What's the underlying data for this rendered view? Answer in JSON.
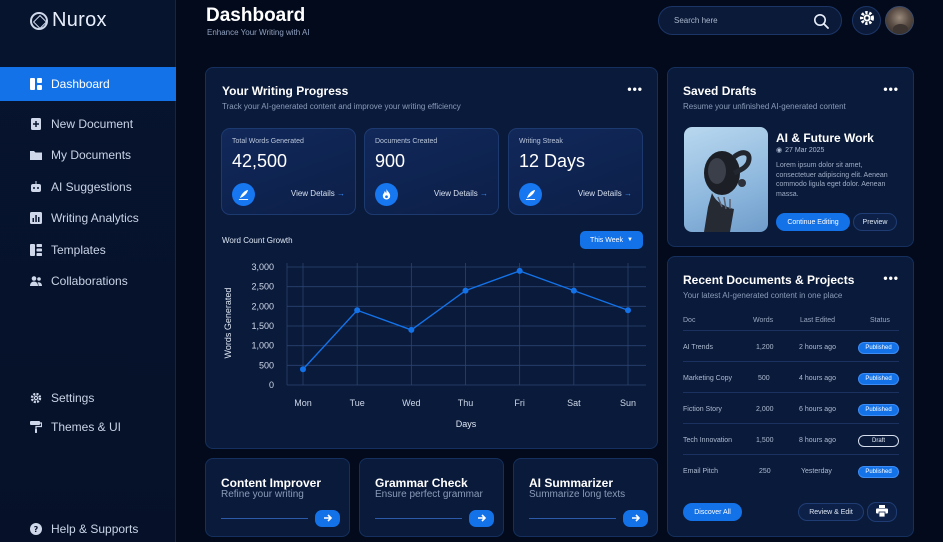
{
  "brand": {
    "name": "Nurox"
  },
  "sidebar": {
    "items": [
      {
        "label": "Dashboard",
        "icon": "dashboard-icon",
        "active": true
      },
      {
        "label": "New Document",
        "icon": "new-document-icon"
      },
      {
        "label": "My Documents",
        "icon": "folder-icon"
      },
      {
        "label": "AI Suggestions",
        "icon": "robot-icon"
      },
      {
        "label": "Writing Analytics",
        "icon": "chart-icon"
      },
      {
        "label": "Templates",
        "icon": "template-icon"
      },
      {
        "label": "Collaborations",
        "icon": "users-icon"
      }
    ],
    "bottom": [
      {
        "label": "Settings",
        "icon": "gear-icon"
      },
      {
        "label": "Themes & UI",
        "icon": "paint-roller-icon"
      },
      {
        "label": "Help & Supports",
        "icon": "help-icon"
      }
    ]
  },
  "header": {
    "title": "Dashboard",
    "subtitle": "Enhance Your Writing with AI",
    "search_placeholder": "Search here"
  },
  "progress": {
    "title": "Your Writing Progress",
    "subtitle": "Track your AI-generated content and improve your writing efficiency",
    "stats": [
      {
        "label": "Total Words Generated",
        "value": "42,500",
        "link": "View Details",
        "icon": "quill-icon"
      },
      {
        "label": "Documents Created",
        "value": "900",
        "link": "View Details",
        "icon": "flame-icon"
      },
      {
        "label": "Writing Streak",
        "value": "12 Days",
        "link": "View Details",
        "icon": "quill-icon"
      }
    ],
    "chart_title": "Word Count Growth",
    "range_button": "This Week"
  },
  "chart_data": {
    "type": "line",
    "title": "Word Count Growth",
    "xlabel": "Days",
    "ylabel": "Words Generated",
    "categories": [
      "Mon",
      "Tue",
      "Wed",
      "Thu",
      "Fri",
      "Sat",
      "Sun"
    ],
    "values": [
      400,
      1900,
      1400,
      2400,
      2900,
      2400,
      1900
    ],
    "yticks": [
      "0",
      "500",
      "1,000",
      "1,500",
      "2,000",
      "2,500",
      "3,000"
    ],
    "ylim": [
      0,
      3000
    ],
    "grid": true,
    "color": "#1472e8"
  },
  "tools": [
    {
      "title": "Content Improver",
      "desc": "Refine your writing"
    },
    {
      "title": "Grammar Check",
      "desc": "Ensure perfect grammar"
    },
    {
      "title": "AI Summarizer",
      "desc": "Summarize long texts"
    }
  ],
  "drafts": {
    "title": "Saved Drafts",
    "subtitle": "Resume your unfinished AI-generated content",
    "item_title": "AI & Future Work",
    "item_date": "27 Mar 2025",
    "item_body": "Lorem ipsum dolor sit amet, consectetuer adipiscing elit. Aenean commodo ligula eget dolor. Aenean massa.",
    "continue_label": "Continue Editing",
    "preview_label": "Preview"
  },
  "recent": {
    "title": "Recent Documents & Projects",
    "subtitle": "Your latest AI-generated content in one place",
    "columns": [
      "Doc",
      "Words",
      "Last Edited",
      "Status"
    ],
    "rows": [
      {
        "doc": "AI Trends",
        "words": "1,200",
        "edited": "2 hours ago",
        "status": "Published"
      },
      {
        "doc": "Marketing Copy",
        "words": "500",
        "edited": "4 hours ago",
        "status": "Published"
      },
      {
        "doc": "Fiction Story",
        "words": "2,000",
        "edited": "6 hours ago",
        "status": "Published"
      },
      {
        "doc": "Tech Innovation",
        "words": "1,500",
        "edited": "8 hours ago",
        "status": "Draft"
      },
      {
        "doc": "Email Pitch",
        "words": "250",
        "edited": "Yesterday",
        "status": "Published"
      }
    ],
    "discover_label": "Discover All",
    "review_label": "Review & Edit"
  }
}
